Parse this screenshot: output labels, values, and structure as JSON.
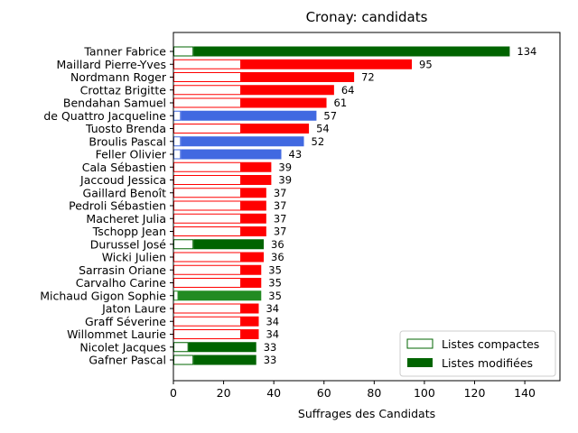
{
  "chart_data": {
    "type": "bar",
    "orientation": "horizontal",
    "stacked": true,
    "title": "Cronay: candidats",
    "xlabel": "Suffrages des Candidats",
    "ylabel": "",
    "xlim": [
      0,
      154
    ],
    "xticks": [
      0,
      20,
      40,
      60,
      80,
      100,
      120,
      140
    ],
    "grid": false,
    "legend_position": "lower-right",
    "legend": [
      {
        "name": "Listes compactes",
        "style": "outline",
        "color": "#006400"
      },
      {
        "name": "Listes modifiées",
        "style": "filled",
        "color": "#006400"
      }
    ],
    "categories": [
      "Tanner Fabrice",
      "Maillard Pierre-Yves",
      "Nordmann Roger",
      "Crottaz Brigitte",
      "Bendahan Samuel",
      "de Quattro Jacqueline",
      "Tuosto Brenda",
      "Broulis Pascal",
      "Feller Olivier",
      "Cala Sébastien",
      "Jaccoud Jessica",
      "Gaillard Benoît",
      "Pedroli Sébastien",
      "Macheret Julia",
      "Tschopp Jean",
      "Durussel José",
      "Wicki Julien",
      "Sarrasin Oriane",
      "Carvalho Carine",
      "Michaud Gigon Sophie",
      "Jaton Laure",
      "Graff Séverine",
      "Willommet Laurie",
      "Nicolet Jacques",
      "Gafner Pascal"
    ],
    "totals": [
      134,
      95,
      72,
      64,
      61,
      57,
      54,
      52,
      43,
      39,
      39,
      37,
      37,
      37,
      37,
      36,
      36,
      35,
      35,
      35,
      34,
      34,
      34,
      33,
      33
    ],
    "compact": [
      8,
      27,
      27,
      27,
      27,
      3,
      27,
      3,
      3,
      27,
      27,
      27,
      27,
      27,
      27,
      8,
      27,
      27,
      27,
      2,
      27,
      27,
      27,
      6,
      8
    ],
    "colors": [
      "#006400",
      "#ff0000",
      "#ff0000",
      "#ff0000",
      "#ff0000",
      "#4169e1",
      "#ff0000",
      "#4169e1",
      "#4169e1",
      "#ff0000",
      "#ff0000",
      "#ff0000",
      "#ff0000",
      "#ff0000",
      "#ff0000",
      "#006400",
      "#ff0000",
      "#ff0000",
      "#ff0000",
      "#228b22",
      "#ff0000",
      "#ff0000",
      "#ff0000",
      "#006400",
      "#006400"
    ]
  }
}
